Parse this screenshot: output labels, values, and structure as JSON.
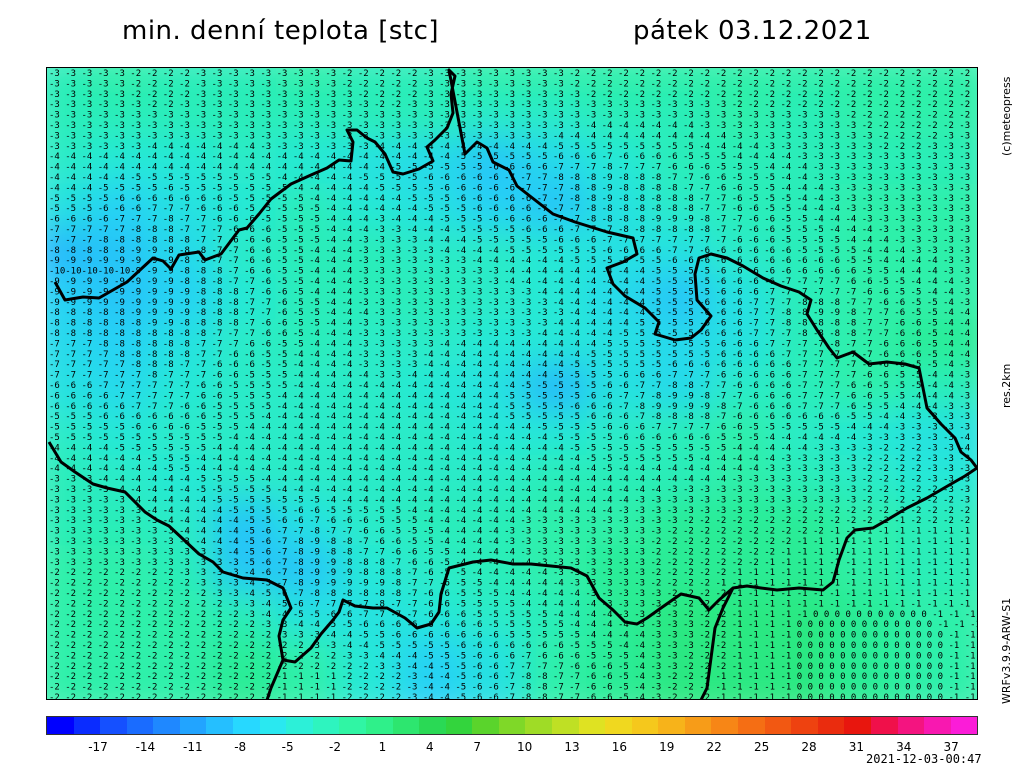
{
  "header": {
    "title": "min. denní teplota [stc]",
    "date": "pátek 03.12.2021"
  },
  "side_labels": {
    "brand": "(c)meteopress",
    "resolution": "res.2km",
    "model": "WRFv3.9.9-ARW-S1"
  },
  "timestamp": "2021-12-03-00:47",
  "colors": {
    "border": "#000000",
    "value_text": "#000000"
  },
  "scale": {
    "ticks": [
      "-17",
      "-14",
      "-11",
      "-8",
      "-5",
      "-2",
      "1",
      "4",
      "7",
      "10",
      "13",
      "16",
      "19",
      "22",
      "25",
      "28",
      "31",
      "34",
      "37"
    ],
    "colors": [
      "#0000ff",
      "#0a2cff",
      "#1550ff",
      "#1a6cff",
      "#1f88ff",
      "#22a4ff",
      "#25bfff",
      "#27d8ff",
      "#2ae8f0",
      "#2cf0d8",
      "#2ef4bf",
      "#30f5a4",
      "#2ff08a",
      "#2de66f",
      "#2ad955",
      "#33d43d",
      "#5ad42c",
      "#7fd828",
      "#9fdc26",
      "#bfe024",
      "#dfe222",
      "#f0d81f",
      "#f5c81c",
      "#f7b31a",
      "#f79c18",
      "#f78616",
      "#f56e14",
      "#f25812",
      "#ee4210",
      "#ea2c0e",
      "#e8160e",
      "#f0104a",
      "#f41480",
      "#f818b0",
      "#fb1cd8"
    ]
  },
  "map": {
    "field": [
      [
        -3,
        -2,
        -3,
        -3,
        -2,
        -3,
        -3,
        -2,
        -2,
        -2,
        -2,
        -2,
        -2,
        -2,
        -2
      ],
      [
        -3,
        -3,
        -3,
        -3,
        -3,
        -3,
        -3,
        -4,
        -4,
        -3,
        -3,
        -2,
        -3,
        -2,
        -2
      ],
      [
        -4,
        -5,
        -5,
        -4,
        -5,
        -6,
        -7,
        -9,
        -7,
        -5,
        -3,
        -3,
        -3,
        -3,
        -3
      ],
      [
        -6,
        -8,
        -6,
        -5,
        -3,
        -5,
        -6,
        -8,
        -9,
        -6,
        -4,
        -3,
        -3,
        -2,
        -2
      ],
      [
        -10,
        -9,
        -7,
        -4,
        -3,
        -3,
        -4,
        -4,
        -5,
        -6,
        -6,
        -4,
        -3,
        -2,
        -2
      ],
      [
        -8,
        -9,
        -8,
        -5,
        -3,
        -3,
        -3,
        -4,
        -5,
        -7,
        -9,
        -6,
        -3,
        -2,
        -2
      ],
      [
        -7,
        -8,
        -6,
        -4,
        -3,
        -4,
        -4,
        -5,
        -5,
        -6,
        -7,
        -6,
        -3,
        -2,
        -1
      ],
      [
        -6,
        -7,
        -5,
        -4,
        -4,
        -4,
        -5,
        -6,
        -10,
        -6,
        -7,
        -4,
        -3,
        -2,
        -3
      ],
      [
        -4,
        -5,
        -4,
        -4,
        -4,
        -4,
        -4,
        -5,
        -5,
        -4,
        -3,
        -2,
        -4,
        -5,
        -6
      ],
      [
        -3,
        -4,
        -5,
        -4,
        -4,
        -4,
        -4,
        -4,
        -3,
        -3,
        -3,
        -2,
        -3,
        -4,
        -5
      ],
      [
        -3,
        -3,
        -4,
        -9,
        -6,
        -4,
        -3,
        -3,
        -2,
        -2,
        -1,
        -1,
        -1,
        -2,
        -3
      ],
      [
        -2,
        -2,
        -3,
        -9,
        -9,
        -5,
        -4,
        -3,
        -2,
        -1,
        -1,
        -1,
        -1,
        -2,
        -3
      ],
      [
        -2,
        -2,
        -2,
        -3,
        -6,
        -6,
        -5,
        -4,
        -3,
        -1,
        0,
        0,
        0,
        -1,
        -2
      ],
      [
        -2,
        -2,
        -2,
        -1,
        -2,
        -5,
        -8,
        -6,
        -2,
        -1,
        0,
        0,
        0,
        -1,
        -2
      ]
    ],
    "border_path": "M 8,214 L 18,232 L 36,229 L 52,230 L 80,214 L 106,190 L 116,193 L 124,201 L 132,187 L 152,184 L 158,192 L 174,186 L 192,162 L 200,160 L 212,146 L 224,131 L 244,116 L 264,107 L 280,100 L 292,92 L 304,93 L 306,74 L 300,62 L 310,62 L 320,70 L 328,74 L 338,86 L 346,104 L 356,106 L 372,101 L 386,93 L 380,79 L 388,72 L 400,60 L 406,45 L 404,26 L 408,8 L 402,2 L 410,44 L 418,86 L 430,74 L 440,80 L 446,94 L 462,102 L 470,118 L 488,132 L 506,146 L 528,154 L 560,164 L 586,170 L 590,186 L 576,194 L 560,200 L 566,216 L 578,228 L 598,240 L 612,254 L 608,266 L 628,272 L 644,270 L 654,262 L 664,248 L 650,232 L 648,206 L 652,190 L 664,186 L 680,190 L 696,198 L 716,210 L 734,218 L 752,224 L 764,232 L 760,246 L 770,262 L 782,280 L 790,290 L 806,284 L 822,296 L 840,294 L 858,296 L 872,300 L 876,320 L 880,340 L 894,356 L 908,370 L 914,384 L 924,392 L 930,400",
    "border_path_south": "M 2,374 L 14,394 L 28,404 L 46,416 L 60,420 L 78,424 L 98,444 L 110,452 L 122,458 L 152,486 L 166,494 L 176,504 L 196,510 L 220,512 L 236,520 L 244,540 L 236,552 L 232,568 L 236,592 L 230,606 L 224,620 L 220,632",
    "border_path_south2": "M 930,400 L 918,408 L 904,416 L 880,430 L 860,440 L 840,452 L 826,460 L 808,462 L 800,470 L 792,492 L 786,514 L 776,522 L 752,520 L 730,522 L 714,520 L 700,518 L 686,520 L 672,532 L 662,542 L 652,530 L 634,526 L 614,540 L 600,550 L 590,556 L 578,554 L 566,542 L 552,530 L 540,508 L 524,500 L 504,498 L 484,496 L 466,496 L 444,492 L 426,494 L 402,500 L 394,526 L 392,544 L 384,556 L 370,560 L 358,550 L 340,540 L 326,540 L 308,538 L 296,532 L 292,544 L 286,552 L 274,566 L 264,580 L 248,594 L 236,592",
    "border_path_river": "M 686,520 L 676,540 L 668,560 L 664,590 L 660,620 L 654,632"
  }
}
